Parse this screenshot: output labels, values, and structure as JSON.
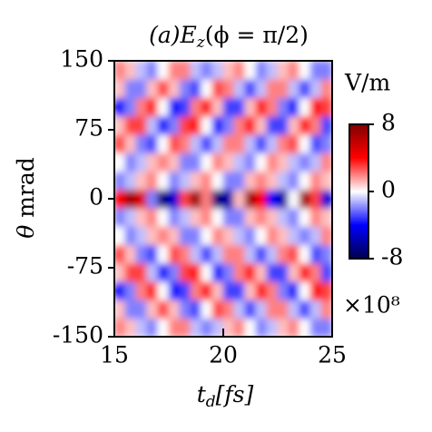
{
  "chart_data": {
    "type": "heatmap",
    "title": [
      "(a)E",
      "z",
      "(ϕ = π/2)"
    ],
    "xlabel": [
      "t",
      "d",
      "[fs]"
    ],
    "ylabel": [
      "θ",
      " mrad"
    ],
    "colorbar_label": "V/m",
    "colorbar_scale": "×10⁸",
    "colormap": "seismic",
    "xlim": [
      15,
      25
    ],
    "xticks": [
      15,
      20,
      25
    ],
    "ylim": [
      -150,
      150
    ],
    "yticks": [
      -150,
      -75,
      0,
      75,
      150
    ],
    "zlim": [
      -8,
      8
    ],
    "zticks": [
      -8,
      0,
      8
    ],
    "x": [
      15.25,
      15.75,
      16.25,
      16.75,
      17.25,
      17.75,
      18.25,
      18.75,
      19.25,
      19.75,
      20.25,
      20.75,
      21.25,
      21.75,
      22.25,
      22.75,
      23.25,
      23.75,
      24.25,
      24.75
    ],
    "y": [
      -140,
      -120,
      -100,
      -80,
      -60,
      -40,
      -20,
      0,
      20,
      40,
      60,
      80,
      100,
      120,
      140
    ],
    "z": [
      [
        2,
        1,
        -1,
        -2,
        0,
        2,
        2,
        -1,
        -2,
        -1,
        1,
        2,
        0,
        -2,
        -1,
        1,
        2,
        0,
        -2,
        -2
      ],
      [
        1,
        -2,
        -2,
        1,
        3,
        1,
        -2,
        -3,
        0,
        3,
        2,
        -1,
        -3,
        -1,
        2,
        2,
        -1,
        -3,
        -1,
        2
      ],
      [
        -4,
        -2,
        2,
        4,
        0,
        -4,
        -3,
        2,
        4,
        1,
        -3,
        -3,
        1,
        4,
        2,
        -2,
        -4,
        0,
        4,
        3
      ],
      [
        1,
        3,
        3,
        -1,
        -4,
        -2,
        3,
        4,
        0,
        -4,
        -2,
        2,
        4,
        1,
        -3,
        -3,
        1,
        4,
        2,
        -3
      ],
      [
        3,
        1,
        -2,
        -3,
        0,
        3,
        2,
        -1,
        -3,
        -1,
        2,
        2,
        -1,
        -3,
        -1,
        2,
        3,
        0,
        -3,
        -2
      ],
      [
        0,
        -2,
        -1,
        1,
        2,
        1,
        -2,
        -2,
        0,
        2,
        1,
        -1,
        -2,
        0,
        2,
        1,
        -1,
        -2,
        -1,
        2
      ],
      [
        -2,
        -1,
        1,
        2,
        0,
        -2,
        -1,
        1,
        2,
        0,
        -2,
        -2,
        1,
        2,
        1,
        -1,
        -2,
        0,
        2,
        1
      ],
      [
        4,
        7,
        5,
        -2,
        -7,
        -5,
        3,
        7,
        2,
        -7,
        -6,
        1,
        7,
        4,
        -4,
        -6,
        0,
        7,
        3,
        -5
      ],
      [
        -2,
        -1,
        1,
        2,
        0,
        -2,
        -1,
        1,
        2,
        0,
        -2,
        -2,
        1,
        2,
        1,
        -1,
        -2,
        0,
        2,
        1
      ],
      [
        0,
        -2,
        -1,
        1,
        2,
        1,
        -2,
        -2,
        0,
        2,
        1,
        -1,
        -2,
        0,
        2,
        1,
        -1,
        -2,
        -1,
        2
      ],
      [
        3,
        1,
        -2,
        -3,
        0,
        3,
        2,
        -1,
        -3,
        -1,
        2,
        2,
        -1,
        -3,
        -1,
        2,
        3,
        0,
        -3,
        -2
      ],
      [
        1,
        3,
        3,
        -1,
        -4,
        -2,
        3,
        4,
        0,
        -4,
        -2,
        2,
        4,
        1,
        -3,
        -3,
        1,
        4,
        2,
        -3
      ],
      [
        -4,
        -2,
        2,
        4,
        0,
        -4,
        -3,
        2,
        4,
        1,
        -3,
        -3,
        1,
        4,
        2,
        -2,
        -4,
        0,
        4,
        3
      ],
      [
        1,
        -2,
        -2,
        1,
        3,
        1,
        -2,
        -3,
        0,
        3,
        2,
        -1,
        -3,
        -1,
        2,
        2,
        -1,
        -3,
        -1,
        2
      ],
      [
        2,
        1,
        -1,
        -2,
        0,
        2,
        2,
        -1,
        -2,
        -1,
        1,
        2,
        0,
        -2,
        -1,
        1,
        2,
        0,
        -2,
        -2
      ]
    ]
  }
}
